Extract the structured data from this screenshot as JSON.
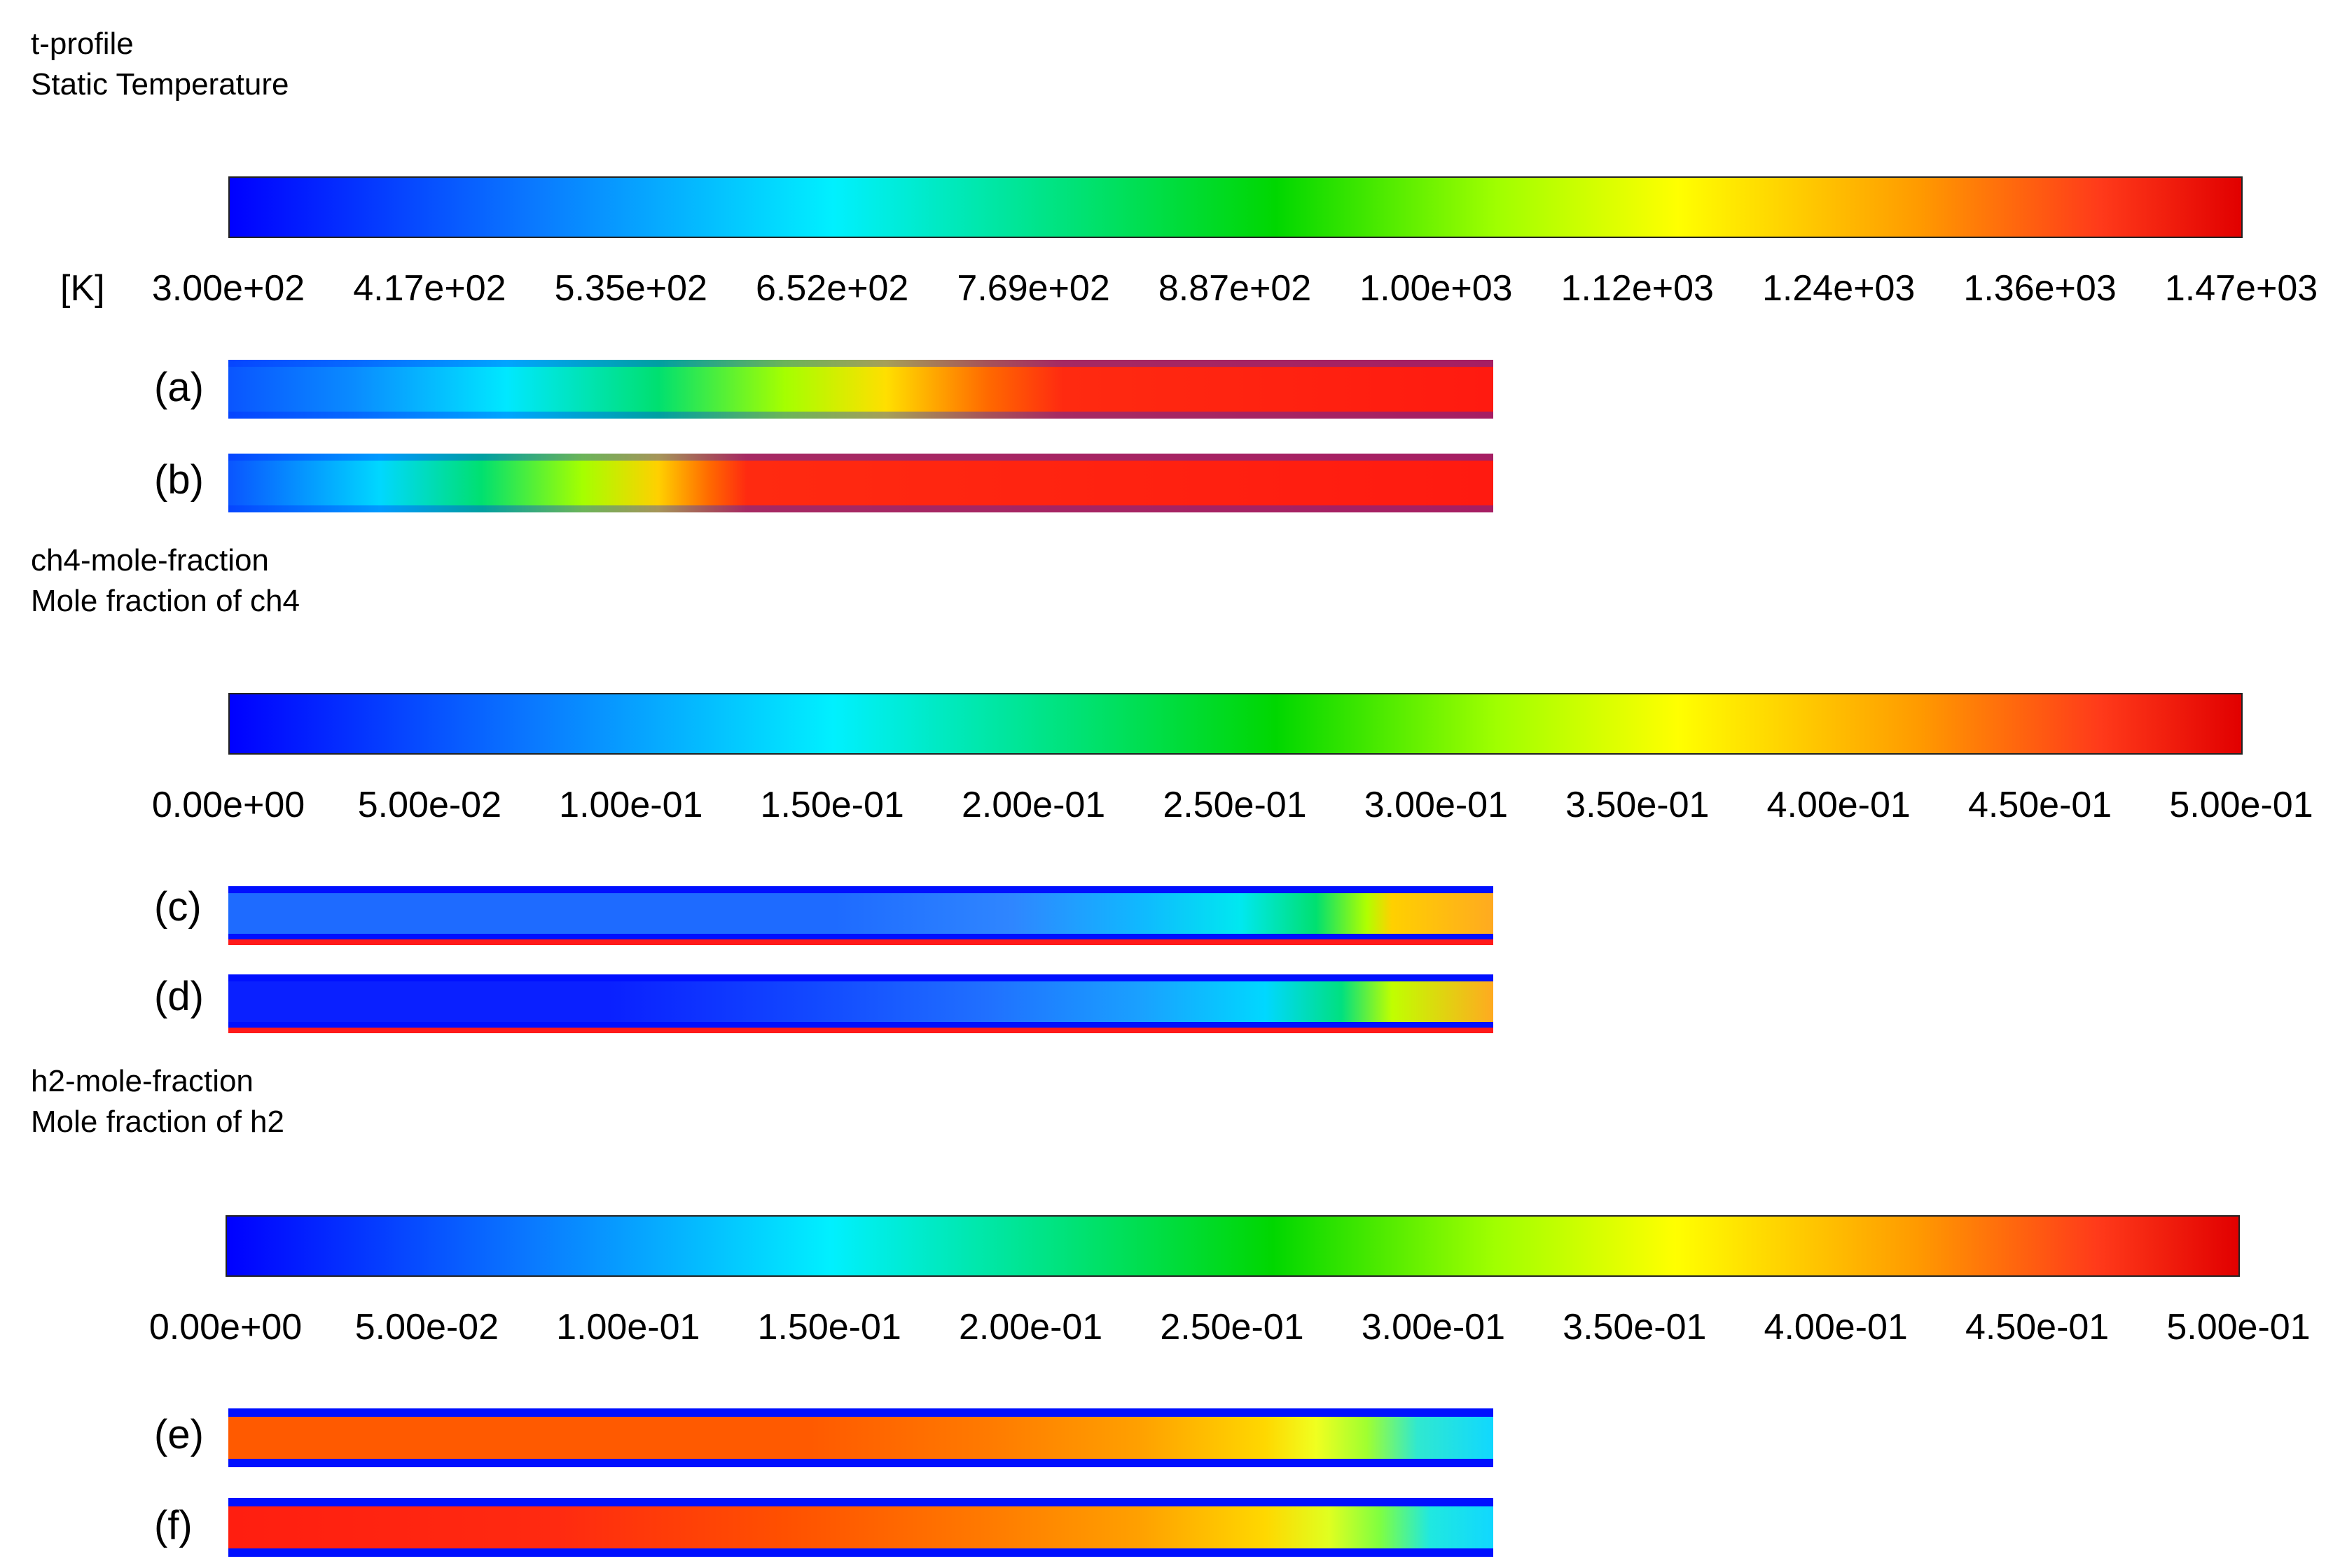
{
  "temperature": {
    "name": "t-profile",
    "quantity": "Static Temperature",
    "unit": "[K]",
    "ticks": [
      "3.00e+02",
      "4.17e+02",
      "5.35e+02",
      "6.52e+02",
      "7.69e+02",
      "8.87e+02",
      "1.00e+03",
      "1.12e+03",
      "1.24e+03",
      "1.36e+03",
      "1.47e+03"
    ],
    "panels": [
      {
        "label": "(a)"
      },
      {
        "label": "(b)"
      }
    ]
  },
  "ch4": {
    "name": "ch4-mole-fraction",
    "quantity": "Mole fraction of ch4",
    "ticks": [
      "0.00e+00",
      "5.00e-02",
      "1.00e-01",
      "1.50e-01",
      "2.00e-01",
      "2.50e-01",
      "3.00e-01",
      "3.50e-01",
      "4.00e-01",
      "4.50e-01",
      "5.00e-01"
    ],
    "panels": [
      {
        "label": "(c)"
      },
      {
        "label": "(d)"
      }
    ]
  },
  "h2": {
    "name": "h2-mole-fraction",
    "quantity": "Mole fraction of h2",
    "ticks": [
      "0.00e+00",
      "5.00e-02",
      "1.00e-01",
      "1.50e-01",
      "2.00e-01",
      "2.50e-01",
      "3.00e-01",
      "3.50e-01",
      "4.00e-01",
      "4.50e-01",
      "5.00e-01"
    ],
    "panels": [
      {
        "label": "(e)"
      },
      {
        "label": "(f)"
      }
    ]
  },
  "colors": {
    "colormap": [
      "#0000ff",
      "#0a78ff",
      "#00f0ff",
      "#00e060",
      "#00d700",
      "#a0ff00",
      "#ffff00",
      "#ff9a00",
      "#ff3a1a",
      "#e10000"
    ],
    "wall_blue": "#0010ff",
    "wall_red": "#ff1a1a"
  }
}
